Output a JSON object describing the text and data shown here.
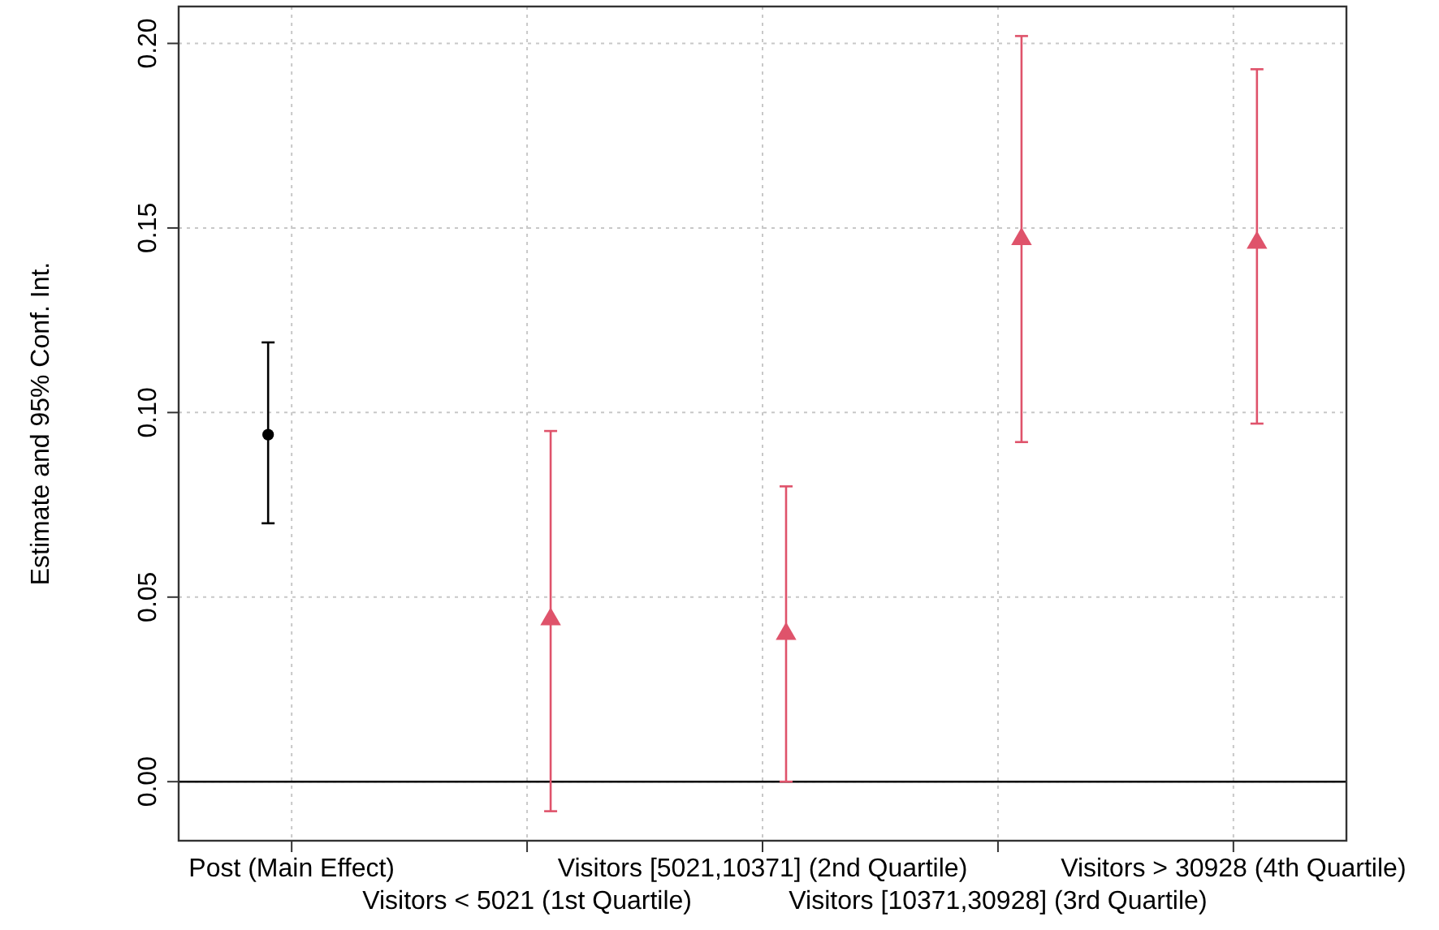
{
  "chart_data": {
    "type": "scatter",
    "ylabel": "Estimate and 95% Conf. Int.",
    "categories": [
      "Post (Main Effect)",
      "Visitors < 5021 (1st Quartile)",
      "Visitors [5021,10371] (2nd Quartile)",
      "Visitors [10371,30928] (3rd Quartile)",
      "Visitors > 30928 (4th Quartile)"
    ],
    "series": [
      {
        "color": "#000000",
        "marker": "circle",
        "x": [
          "Post (Main Effect)"
        ],
        "values": [
          0.094
        ],
        "errors": [
          [
            0.07,
            0.119
          ]
        ]
      },
      {
        "color": "#df536b",
        "marker": "triangle",
        "x": [
          "Visitors < 5021 (1st Quartile)",
          "Visitors [5021,10371] (2nd Quartile)",
          "Visitors [10371,30928] (3rd Quartile)",
          "Visitors > 30928 (4th Quartile)"
        ],
        "values": [
          0.044,
          0.04,
          0.147,
          0.146
        ],
        "errors": [
          [
            -0.008,
            0.095
          ],
          [
            0.0,
            0.08
          ],
          [
            0.092,
            0.202
          ],
          [
            0.097,
            0.193
          ]
        ]
      }
    ],
    "ylim": [
      -0.016,
      0.21
    ],
    "yticks": [
      {
        "value": 0,
        "label": "0.00"
      },
      {
        "value": 0.05,
        "label": "0.05"
      },
      {
        "value": 0.1,
        "label": "0.10"
      },
      {
        "value": 0.15,
        "label": "0.15"
      },
      {
        "value": 0.2,
        "label": "0.20"
      }
    ],
    "grid": true,
    "ref_lines": [
      {
        "axis": "y",
        "value": 0,
        "color": "#000000",
        "line_style": "solid"
      }
    ]
  }
}
